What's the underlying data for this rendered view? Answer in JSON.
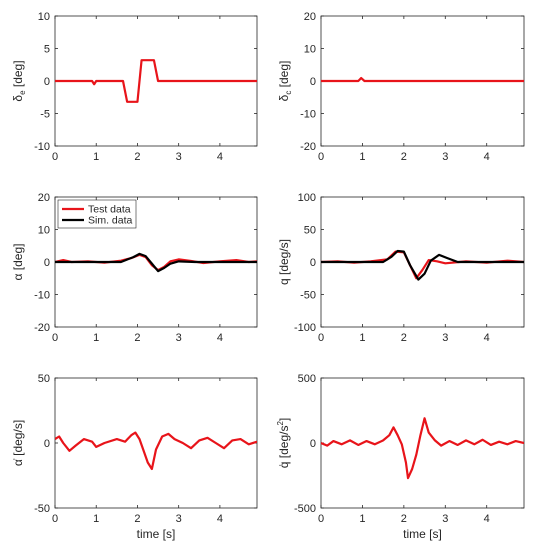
{
  "colors": {
    "test": "#e8141a",
    "sim": "#000000",
    "axis": "#262626"
  },
  "chart_data": [
    {
      "id": "de",
      "type": "line",
      "ylabel_main": "δ",
      "ylabel_sub": "e",
      "ylabel_unit": " [deg]",
      "xlim": [
        0,
        4.9
      ],
      "ylim": [
        -10,
        10
      ],
      "xticks": [
        0,
        1,
        2,
        3,
        4
      ],
      "xticklabels": [
        "0",
        "1",
        "2",
        "3",
        "4"
      ],
      "yticks": [
        -10,
        -5,
        0,
        5,
        10
      ],
      "yticklabels": [
        "-10",
        "-5",
        "0",
        "5",
        "10"
      ],
      "xlabel": "",
      "series": [
        {
          "key": "test",
          "values": [
            [
              0,
              0
            ],
            [
              0.9,
              0
            ],
            [
              0.95,
              -0.5
            ],
            [
              1.0,
              0
            ],
            [
              1.65,
              0
            ],
            [
              1.75,
              -3.2
            ],
            [
              2.0,
              -3.2
            ],
            [
              2.1,
              3.2
            ],
            [
              2.4,
              3.2
            ],
            [
              2.5,
              0
            ],
            [
              4.9,
              0
            ]
          ]
        }
      ]
    },
    {
      "id": "dc",
      "type": "line",
      "ylabel_main": "δ",
      "ylabel_sub": "c",
      "ylabel_unit": " [deg]",
      "xlim": [
        0,
        4.9
      ],
      "ylim": [
        -20,
        20
      ],
      "xticks": [
        0,
        1,
        2,
        3,
        4
      ],
      "xticklabels": [
        "0",
        "1",
        "2",
        "3",
        "4"
      ],
      "yticks": [
        -20,
        -10,
        0,
        10,
        20
      ],
      "yticklabels": [
        "-20",
        "-10",
        "0",
        "10",
        "20"
      ],
      "xlabel": "",
      "series": [
        {
          "key": "test",
          "values": [
            [
              0,
              0
            ],
            [
              0.9,
              0
            ],
            [
              0.97,
              0.9
            ],
            [
              1.05,
              0
            ],
            [
              4.9,
              0
            ]
          ]
        }
      ]
    },
    {
      "id": "alpha",
      "type": "line",
      "ylabel_main": "α",
      "ylabel_sub": "",
      "ylabel_unit": " [deg]",
      "xlim": [
        0,
        4.9
      ],
      "ylim": [
        -20,
        20
      ],
      "xticks": [
        0,
        1,
        2,
        3,
        4
      ],
      "xticklabels": [
        "0",
        "1",
        "2",
        "3",
        "4"
      ],
      "yticks": [
        -20,
        -10,
        0,
        10,
        20
      ],
      "yticklabels": [
        "-20",
        "-10",
        "0",
        "10",
        "20"
      ],
      "xlabel": "",
      "legend": {
        "placement": "top-left",
        "entries": [
          {
            "key": "test",
            "label": "Test data"
          },
          {
            "key": "sim",
            "label": "Sim. data"
          }
        ]
      },
      "series": [
        {
          "key": "test",
          "values": [
            [
              0,
              0
            ],
            [
              0.2,
              0.6
            ],
            [
              0.4,
              0
            ],
            [
              0.8,
              0.2
            ],
            [
              1.2,
              -0.2
            ],
            [
              1.6,
              0.4
            ],
            [
              1.85,
              1.2
            ],
            [
              2.05,
              2.2
            ],
            [
              2.2,
              1.5
            ],
            [
              2.35,
              -1.0
            ],
            [
              2.5,
              -2.5
            ],
            [
              2.65,
              -1.5
            ],
            [
              2.8,
              0.2
            ],
            [
              3.0,
              0.8
            ],
            [
              3.3,
              0.3
            ],
            [
              3.6,
              -0.3
            ],
            [
              4.0,
              0.2
            ],
            [
              4.4,
              0.6
            ],
            [
              4.7,
              0
            ],
            [
              4.9,
              0.2
            ]
          ]
        },
        {
          "key": "sim",
          "values": [
            [
              0,
              0
            ],
            [
              1.6,
              0
            ],
            [
              1.9,
              1.5
            ],
            [
              2.05,
              2.5
            ],
            [
              2.2,
              1.8
            ],
            [
              2.35,
              -0.5
            ],
            [
              2.5,
              -2.8
            ],
            [
              2.65,
              -1.8
            ],
            [
              2.8,
              -0.5
            ],
            [
              3.0,
              0.2
            ],
            [
              3.4,
              0
            ],
            [
              4.9,
              0
            ]
          ]
        }
      ]
    },
    {
      "id": "q",
      "type": "line",
      "ylabel_main": "q [deg/s]",
      "ylabel_sub": "",
      "ylabel_unit": "",
      "xlim": [
        0,
        4.9
      ],
      "ylim": [
        -100,
        100
      ],
      "xticks": [
        0,
        1,
        2,
        3,
        4
      ],
      "xticklabels": [
        "0",
        "1",
        "2",
        "3",
        "4"
      ],
      "yticks": [
        -100,
        -50,
        0,
        50,
        100
      ],
      "yticklabels": [
        "-100",
        "-50",
        "0",
        "50",
        "100"
      ],
      "xlabel": "",
      "series": [
        {
          "key": "test",
          "values": [
            [
              0,
              0
            ],
            [
              0.4,
              1
            ],
            [
              0.8,
              -1
            ],
            [
              1.2,
              1
            ],
            [
              1.6,
              4
            ],
            [
              1.8,
              16
            ],
            [
              2.0,
              15
            ],
            [
              2.15,
              -5
            ],
            [
              2.3,
              -25
            ],
            [
              2.45,
              -12
            ],
            [
              2.6,
              3
            ],
            [
              2.8,
              1
            ],
            [
              3.0,
              -2
            ],
            [
              3.5,
              1
            ],
            [
              4.0,
              -1
            ],
            [
              4.5,
              2
            ],
            [
              4.9,
              0
            ]
          ]
        },
        {
          "key": "sim",
          "values": [
            [
              0,
              0
            ],
            [
              1.5,
              0
            ],
            [
              1.7,
              8
            ],
            [
              1.85,
              17
            ],
            [
              2.0,
              16
            ],
            [
              2.15,
              -5
            ],
            [
              2.35,
              -27
            ],
            [
              2.5,
              -18
            ],
            [
              2.65,
              2
            ],
            [
              2.85,
              11
            ],
            [
              3.05,
              6
            ],
            [
              3.3,
              0
            ],
            [
              4.9,
              0
            ]
          ]
        }
      ]
    },
    {
      "id": "alphadot",
      "type": "line",
      "ylabel_main": "α̇ [deg/s]",
      "ylabel_sub": "",
      "ylabel_unit": "",
      "xlim": [
        0,
        4.9
      ],
      "ylim": [
        -50,
        50
      ],
      "xticks": [
        0,
        1,
        2,
        3,
        4
      ],
      "xticklabels": [
        "0",
        "1",
        "2",
        "3",
        "4"
      ],
      "yticks": [
        -50,
        0,
        50
      ],
      "yticklabels": [
        "-50",
        "0",
        "50"
      ],
      "xlabel": "time [s]",
      "series": [
        {
          "key": "test",
          "values": [
            [
              0,
              3
            ],
            [
              0.1,
              5
            ],
            [
              0.2,
              0
            ],
            [
              0.35,
              -6
            ],
            [
              0.5,
              -2
            ],
            [
              0.7,
              3
            ],
            [
              0.9,
              1
            ],
            [
              1.0,
              -3
            ],
            [
              1.2,
              0
            ],
            [
              1.5,
              3
            ],
            [
              1.7,
              1
            ],
            [
              1.85,
              6
            ],
            [
              1.95,
              8
            ],
            [
              2.05,
              3
            ],
            [
              2.15,
              -6
            ],
            [
              2.25,
              -15
            ],
            [
              2.35,
              -20
            ],
            [
              2.45,
              -5
            ],
            [
              2.6,
              5
            ],
            [
              2.75,
              7
            ],
            [
              2.9,
              3
            ],
            [
              3.1,
              0
            ],
            [
              3.3,
              -4
            ],
            [
              3.5,
              2
            ],
            [
              3.7,
              4
            ],
            [
              3.9,
              0
            ],
            [
              4.1,
              -4
            ],
            [
              4.3,
              2
            ],
            [
              4.5,
              3
            ],
            [
              4.7,
              -1
            ],
            [
              4.9,
              1
            ]
          ]
        }
      ]
    },
    {
      "id": "qdot",
      "type": "line",
      "ylabel_main": "q̇ [deg/s",
      "ylabel_sup": "2",
      "ylabel_unit": "]",
      "xlim": [
        0,
        4.9
      ],
      "ylim": [
        -500,
        500
      ],
      "xticks": [
        0,
        1,
        2,
        3,
        4
      ],
      "xticklabels": [
        "0",
        "1",
        "2",
        "3",
        "4"
      ],
      "yticks": [
        -500,
        0,
        500
      ],
      "yticklabels": [
        "-500",
        "0",
        "500"
      ],
      "xlabel": "time [s]",
      "series": [
        {
          "key": "test",
          "values": [
            [
              0,
              0
            ],
            [
              0.15,
              -20
            ],
            [
              0.3,
              15
            ],
            [
              0.5,
              -10
            ],
            [
              0.7,
              20
            ],
            [
              0.9,
              -15
            ],
            [
              1.1,
              15
            ],
            [
              1.3,
              -10
            ],
            [
              1.5,
              20
            ],
            [
              1.65,
              60
            ],
            [
              1.75,
              120
            ],
            [
              1.85,
              60
            ],
            [
              1.95,
              -10
            ],
            [
              2.05,
              -150
            ],
            [
              2.1,
              -270
            ],
            [
              2.2,
              -200
            ],
            [
              2.3,
              -90
            ],
            [
              2.4,
              60
            ],
            [
              2.5,
              190
            ],
            [
              2.6,
              80
            ],
            [
              2.75,
              20
            ],
            [
              2.9,
              -20
            ],
            [
              3.1,
              15
            ],
            [
              3.3,
              -15
            ],
            [
              3.5,
              20
            ],
            [
              3.7,
              -10
            ],
            [
              3.9,
              25
            ],
            [
              4.1,
              -15
            ],
            [
              4.3,
              10
            ],
            [
              4.5,
              -10
            ],
            [
              4.7,
              15
            ],
            [
              4.9,
              0
            ]
          ]
        }
      ]
    }
  ]
}
